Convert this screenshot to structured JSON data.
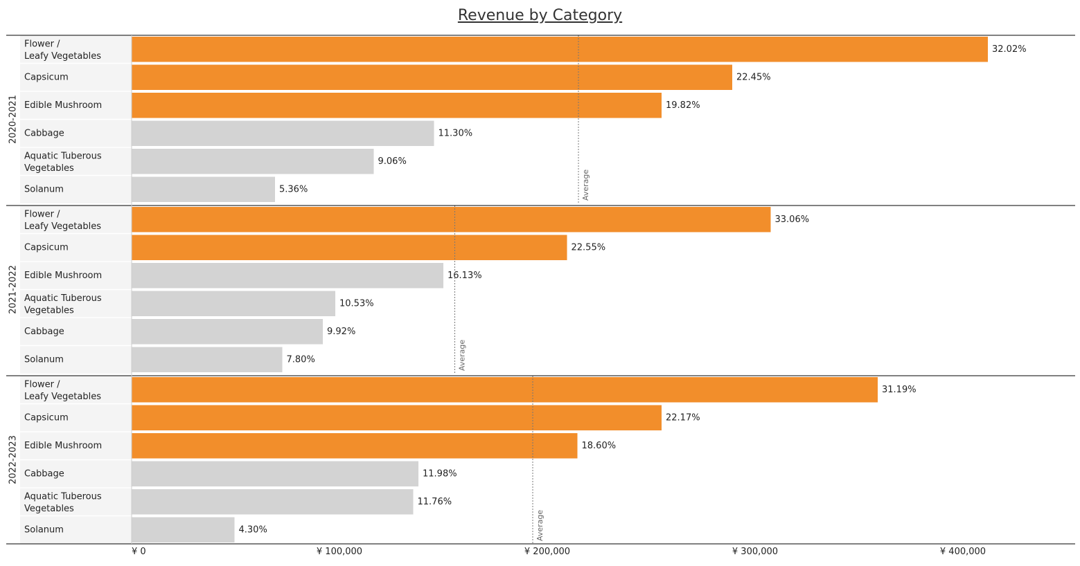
{
  "chart_data": {
    "type": "bar",
    "orientation": "horizontal",
    "title": "Revenue by Category",
    "x_axis": {
      "ticks": [
        "¥ 0",
        "¥ 100,000",
        "¥ 200,000",
        "¥ 300,000",
        "¥ 400,000"
      ],
      "tick_values": [
        0,
        100000,
        200000,
        300000,
        400000
      ],
      "xlim": [
        0,
        450000
      ]
    },
    "reference_line_label": "Average",
    "highlight_color": "#F28E2B",
    "base_color": "#D3D3D3",
    "groups": [
      {
        "name": "2020-2021",
        "average": 215000,
        "bars": [
          {
            "category": "Flower /  Leafy Vegetables",
            "value": 412000,
            "label": "32.02%",
            "highlight": true
          },
          {
            "category": "Capsicum",
            "value": 289000,
            "label": "22.45%",
            "highlight": true
          },
          {
            "category": "Edible Mushroom",
            "value": 255000,
            "label": "19.82%",
            "highlight": true
          },
          {
            "category": "Cabbage",
            "value": 145500,
            "label": "11.30%",
            "highlight": false
          },
          {
            "category": "Aquatic Tuberous Vegetables",
            "value": 116500,
            "label": "9.06%",
            "highlight": false
          },
          {
            "category": "Solanum",
            "value": 69000,
            "label": "5.36%",
            "highlight": false
          }
        ]
      },
      {
        "name": "2021-2022",
        "average": 155500,
        "bars": [
          {
            "category": "Flower /  Leafy Vegetables",
            "value": 307500,
            "label": "33.06%",
            "highlight": true
          },
          {
            "category": "Capsicum",
            "value": 209500,
            "label": "22.55%",
            "highlight": true
          },
          {
            "category": "Edible Mushroom",
            "value": 150000,
            "label": "16.13%",
            "highlight": false
          },
          {
            "category": "Aquatic Tuberous Vegetables",
            "value": 98000,
            "label": "10.53%",
            "highlight": false
          },
          {
            "category": "Cabbage",
            "value": 92000,
            "label": "9.92%",
            "highlight": false
          },
          {
            "category": "Solanum",
            "value": 72500,
            "label": "7.80%",
            "highlight": false
          }
        ]
      },
      {
        "name": "2022-2023",
        "average": 193000,
        "bars": [
          {
            "category": "Flower /  Leafy Vegetables",
            "value": 359000,
            "label": "31.19%",
            "highlight": true
          },
          {
            "category": "Capsicum",
            "value": 255000,
            "label": "22.17%",
            "highlight": true
          },
          {
            "category": "Edible Mushroom",
            "value": 214500,
            "label": "18.60%",
            "highlight": true
          },
          {
            "category": "Cabbage",
            "value": 138000,
            "label": "11.98%",
            "highlight": false
          },
          {
            "category": "Aquatic Tuberous Vegetables",
            "value": 135500,
            "label": "11.76%",
            "highlight": false
          },
          {
            "category": "Solanum",
            "value": 49500,
            "label": "4.30%",
            "highlight": false
          }
        ]
      }
    ]
  }
}
